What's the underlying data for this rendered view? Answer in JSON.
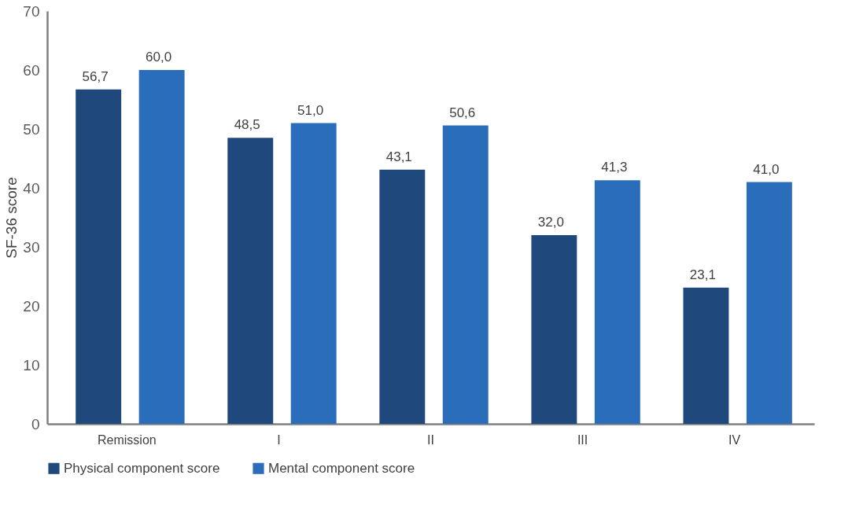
{
  "chart_data": {
    "type": "bar",
    "ylabel": "SF-36 score",
    "categories": [
      "Remission",
      "I",
      "II",
      "III",
      "IV"
    ],
    "series": [
      {
        "name": "Physical component score",
        "color": "#1f487c",
        "values": [
          56.7,
          48.5,
          43.1,
          32.0,
          23.1
        ],
        "value_labels": [
          "56,7",
          "48,5",
          "43,1",
          "32,0",
          "23,1"
        ]
      },
      {
        "name": "Mental component score",
        "color": "#2a6ebb",
        "values": [
          60.0,
          51.0,
          50.6,
          41.3,
          41.0
        ],
        "value_labels": [
          "60,0",
          "51,0",
          "50,6",
          "41,3",
          "41,0"
        ]
      }
    ],
    "ylim": [
      0,
      70
    ],
    "yticks": [
      0,
      10,
      20,
      30,
      40,
      50,
      60,
      70
    ],
    "grid": false,
    "legend": "bottom"
  }
}
